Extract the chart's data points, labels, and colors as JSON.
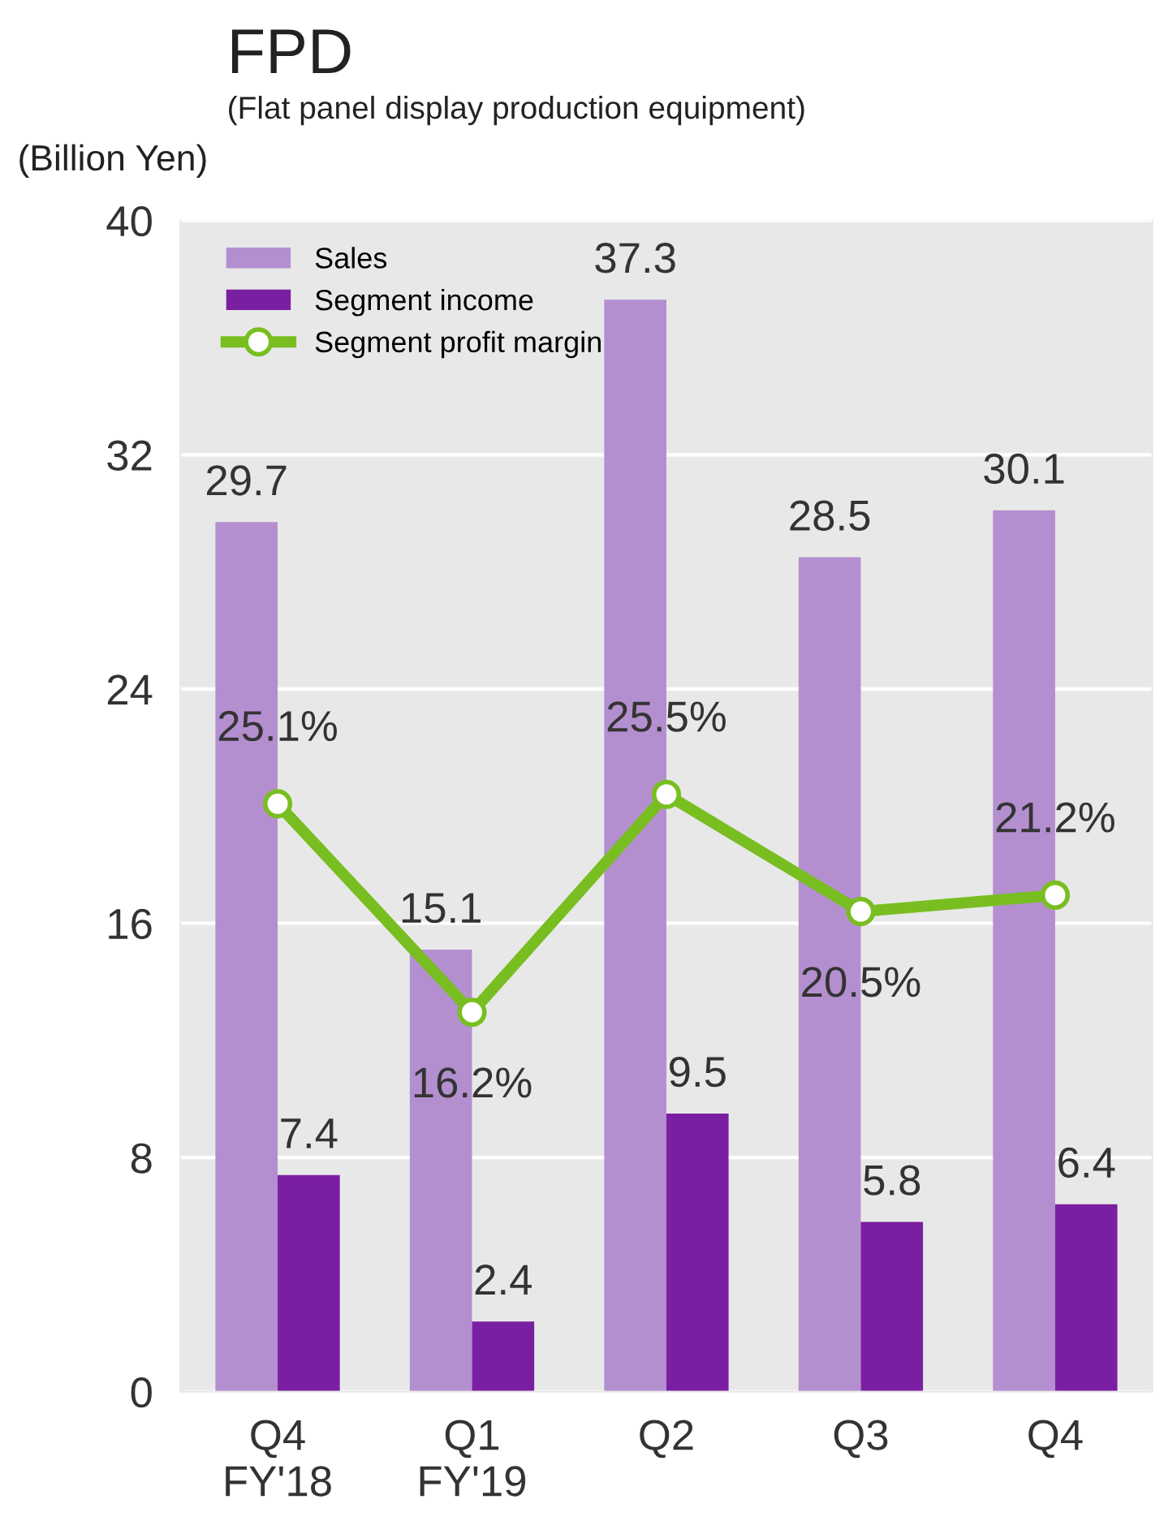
{
  "chart_data": {
    "type": "bar",
    "title": "FPD",
    "subtitle": "(Flat panel display production equipment)",
    "ylabel": "(Billion Yen)",
    "categories": [
      "Q4\nFY'18",
      "Q1\nFY'19",
      "Q2",
      "Q3",
      "Q4"
    ],
    "series": [
      {
        "name": "Sales",
        "color": "#b48fd0",
        "values": [
          29.7,
          15.1,
          37.3,
          28.5,
          30.1
        ],
        "value_labels": [
          "29.7",
          "15.1",
          "37.3",
          "28.5",
          "30.1"
        ]
      },
      {
        "name": "Segment income",
        "color": "#7b1fa2",
        "values": [
          7.4,
          2.4,
          9.5,
          5.8,
          6.4
        ],
        "value_labels": [
          "7.4",
          "2.4",
          "9.5",
          "5.8",
          "6.4"
        ]
      },
      {
        "name": "Segment profit margin",
        "type": "line",
        "axis": "y2",
        "color": "#78be20",
        "marker": "circle",
        "values": [
          25.1,
          16.2,
          25.5,
          20.5,
          21.2
        ],
        "value_labels": [
          "25.1%",
          "16.2%",
          "25.5%",
          "20.5%",
          "21.2%"
        ]
      }
    ],
    "ylim": [
      0,
      40
    ],
    "yticks": [
      0,
      8,
      16,
      24,
      32,
      40
    ],
    "y2lim": [
      0,
      50
    ],
    "grid": "y",
    "legend": "top left"
  }
}
